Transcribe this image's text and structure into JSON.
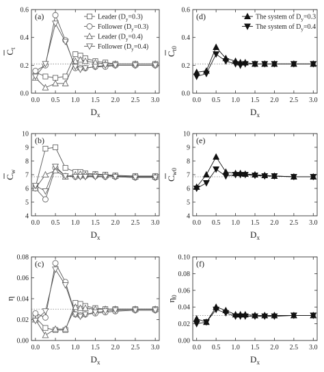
{
  "chart_data": [
    {
      "id": "a",
      "type": "line",
      "panel_label": "(a)",
      "xlabel": "D",
      "xlabel_sub": "x",
      "ylabel": "C",
      "ylabel_sub": "t",
      "ylabel_bar": true,
      "xlim": [
        -0.1,
        3.1
      ],
      "ylim": [
        0.0,
        0.6
      ],
      "xticks": [
        0.0,
        0.5,
        1.0,
        1.5,
        2.0,
        2.5,
        3.0
      ],
      "xtick_labels": [
        "0.0",
        "0.5",
        "1.0",
        "1.5",
        "2.0",
        "2.5",
        "3.0"
      ],
      "yticks": [
        0.0,
        0.2,
        0.4,
        0.6
      ],
      "ytick_labels": [
        "0.0",
        "0.2",
        "0.4",
        "0.6"
      ],
      "reference_line": 0.21,
      "legend": {
        "position": "top-right",
        "entries": [
          {
            "marker": "square-open",
            "text": "Leader (D",
            "sub": "y",
            "suffix": "=0.3)"
          },
          {
            "marker": "circle-open",
            "text": "Follower (D",
            "sub": "y",
            "suffix": "=0.3)"
          },
          {
            "marker": "triangle-up-open",
            "text": "Leader (D",
            "sub": "y",
            "suffix": "=0.4)"
          },
          {
            "marker": "triangle-down-open",
            "text": "Follower (D",
            "sub": "y",
            "suffix": "=0.4)"
          }
        ]
      },
      "series": [
        {
          "marker": "square-open",
          "x": [
            0.0,
            0.25,
            0.5,
            0.75,
            1.0,
            1.125,
            1.25,
            1.5,
            1.75,
            2.0,
            2.5,
            3.0
          ],
          "y": [
            0.15,
            0.12,
            0.11,
            0.12,
            0.28,
            0.27,
            0.25,
            0.23,
            0.22,
            0.21,
            0.21,
            0.21
          ]
        },
        {
          "marker": "circle-open",
          "x": [
            0.0,
            0.25,
            0.5,
            0.75,
            1.0,
            1.125,
            1.25,
            1.5,
            1.75,
            2.0,
            2.5,
            3.0
          ],
          "y": [
            0.16,
            0.2,
            0.56,
            0.38,
            0.18,
            0.18,
            0.18,
            0.19,
            0.19,
            0.2,
            0.2,
            0.2
          ]
        },
        {
          "marker": "triangle-up-open",
          "x": [
            0.0,
            0.25,
            0.5,
            0.75,
            1.0,
            1.125,
            1.25,
            1.5,
            1.75,
            2.0,
            2.5,
            3.0
          ],
          "y": [
            0.11,
            0.04,
            0.07,
            0.07,
            0.23,
            0.24,
            0.23,
            0.22,
            0.21,
            0.21,
            0.21,
            0.21
          ]
        },
        {
          "marker": "triangle-down-open",
          "x": [
            0.0,
            0.25,
            0.5,
            0.75,
            1.0,
            1.125,
            1.25,
            1.5,
            1.75,
            2.0,
            2.5,
            3.0
          ],
          "y": [
            0.12,
            0.21,
            0.5,
            0.37,
            0.19,
            0.17,
            0.18,
            0.19,
            0.2,
            0.2,
            0.2,
            0.2
          ]
        }
      ]
    },
    {
      "id": "d",
      "type": "line",
      "panel_label": "(d)",
      "xlabel": "D",
      "xlabel_sub": "x",
      "ylabel": "C",
      "ylabel_sub": "t0",
      "ylabel_bar": true,
      "xlim": [
        -0.1,
        3.1
      ],
      "ylim": [
        0.0,
        0.6
      ],
      "xticks": [
        0.0,
        0.5,
        1.0,
        1.5,
        2.0,
        2.5,
        3.0
      ],
      "xtick_labels": [
        "0.0",
        "0.5",
        "1.0",
        "1.5",
        "2.0",
        "2.5",
        "3.0"
      ],
      "yticks": [
        0.0,
        0.2,
        0.4,
        0.6
      ],
      "ytick_labels": [
        "0.0",
        "0.2",
        "0.4",
        "0.6"
      ],
      "reference_line": 0.21,
      "legend": {
        "position": "top-right",
        "entries": [
          {
            "marker": "triangle-up-filled",
            "text": "The system of  D",
            "sub": "y",
            "suffix": "=0.3"
          },
          {
            "marker": "triangle-down-filled",
            "text": "The system of  D",
            "sub": "y",
            "suffix": "=0.4"
          }
        ]
      },
      "series": [
        {
          "marker": "triangle-up-filled",
          "x": [
            0.0,
            0.25,
            0.5,
            0.75,
            1.0,
            1.125,
            1.25,
            1.5,
            1.75,
            2.0,
            2.5,
            3.0
          ],
          "y": [
            0.15,
            0.16,
            0.33,
            0.25,
            0.23,
            0.22,
            0.22,
            0.21,
            0.21,
            0.21,
            0.21,
            0.21
          ]
        },
        {
          "marker": "triangle-down-filled",
          "x": [
            0.0,
            0.25,
            0.5,
            0.75,
            1.0,
            1.125,
            1.25,
            1.5,
            1.75,
            2.0,
            2.5,
            3.0
          ],
          "y": [
            0.12,
            0.14,
            0.28,
            0.23,
            0.21,
            0.2,
            0.21,
            0.21,
            0.21,
            0.21,
            0.21,
            0.21
          ]
        }
      ]
    },
    {
      "id": "b",
      "type": "line",
      "panel_label": "(b)",
      "xlabel": "D",
      "xlabel_sub": "x",
      "ylabel": "C",
      "ylabel_sub": "w",
      "ylabel_bar": true,
      "xlim": [
        -0.1,
        3.1
      ],
      "ylim": [
        4,
        10
      ],
      "xticks": [
        0.0,
        0.5,
        1.0,
        1.5,
        2.0,
        2.5,
        3.0
      ],
      "xtick_labels": [
        "0.0",
        "0.5",
        "1.0",
        "1.5",
        "2.0",
        "2.5",
        "3.0"
      ],
      "yticks": [
        4,
        5,
        6,
        7,
        8,
        9,
        10
      ],
      "ytick_labels": [
        "4",
        "5",
        "6",
        "7",
        "8",
        "9",
        "10"
      ],
      "reference_line": 6.85,
      "series": [
        {
          "marker": "square-open",
          "x": [
            0.0,
            0.25,
            0.5,
            0.75,
            1.0,
            1.125,
            1.25,
            1.5,
            1.75,
            2.0,
            2.5,
            3.0
          ],
          "y": [
            6.1,
            8.9,
            9.0,
            7.5,
            7.2,
            7.2,
            7.1,
            7.05,
            7.0,
            6.95,
            6.9,
            6.9
          ]
        },
        {
          "marker": "circle-open",
          "x": [
            0.0,
            0.25,
            0.5,
            0.75,
            1.0,
            1.125,
            1.25,
            1.5,
            1.75,
            2.0,
            2.5,
            3.0
          ],
          "y": [
            6.0,
            5.2,
            7.5,
            6.9,
            6.85,
            6.9,
            6.9,
            6.9,
            6.85,
            6.85,
            6.8,
            6.8
          ]
        },
        {
          "marker": "triangle-up-open",
          "x": [
            0.0,
            0.25,
            0.5,
            0.75,
            1.0,
            1.125,
            1.25,
            1.5,
            1.75,
            2.0,
            2.5,
            3.0
          ],
          "y": [
            6.0,
            7.0,
            7.3,
            6.85,
            7.0,
            7.05,
            7.0,
            7.0,
            6.95,
            6.9,
            6.85,
            6.85
          ]
        },
        {
          "marker": "triangle-down-open",
          "x": [
            0.0,
            0.25,
            0.5,
            0.75,
            1.0,
            1.125,
            1.25,
            1.5,
            1.75,
            2.0,
            2.5,
            3.0
          ],
          "y": [
            6.2,
            5.8,
            7.6,
            6.9,
            6.85,
            6.85,
            6.85,
            6.85,
            6.85,
            6.85,
            6.8,
            6.8
          ]
        }
      ]
    },
    {
      "id": "e",
      "type": "line",
      "panel_label": "(e)",
      "xlabel": "D",
      "xlabel_sub": "x",
      "ylabel": "C",
      "ylabel_sub": "w0",
      "ylabel_bar": true,
      "xlim": [
        -0.1,
        3.1
      ],
      "ylim": [
        4,
        10
      ],
      "xticks": [
        0.0,
        0.5,
        1.0,
        1.5,
        2.0,
        2.5,
        3.0
      ],
      "xtick_labels": [
        "0.0",
        "0.5",
        "1.0",
        "1.5",
        "2.0",
        "2.5",
        "3.0"
      ],
      "yticks": [
        4,
        5,
        6,
        7,
        8,
        9,
        10
      ],
      "ytick_labels": [
        "4",
        "5",
        "6",
        "7",
        "8",
        "9",
        "10"
      ],
      "reference_line": 6.85,
      "series": [
        {
          "marker": "triangle-up-filled",
          "x": [
            0.0,
            0.25,
            0.5,
            0.75,
            1.0,
            1.125,
            1.25,
            1.5,
            1.75,
            2.0,
            2.5,
            3.0
          ],
          "y": [
            6.1,
            7.0,
            8.3,
            7.2,
            7.1,
            7.1,
            7.05,
            7.0,
            6.95,
            6.9,
            6.85,
            6.85
          ]
        },
        {
          "marker": "triangle-down-filled",
          "x": [
            0.0,
            0.25,
            0.5,
            0.75,
            1.0,
            1.125,
            1.25,
            1.5,
            1.75,
            2.0,
            2.5,
            3.0
          ],
          "y": [
            6.0,
            6.4,
            7.4,
            6.9,
            7.0,
            7.0,
            7.0,
            6.95,
            6.9,
            6.9,
            6.85,
            6.85
          ]
        }
      ]
    },
    {
      "id": "c",
      "type": "line",
      "panel_label": "(c)",
      "xlabel": "D",
      "xlabel_sub": "x",
      "ylabel": "η",
      "ylabel_sub": "",
      "ylabel_bar": false,
      "xlim": [
        -0.1,
        3.1
      ],
      "ylim": [
        0.0,
        0.08
      ],
      "xticks": [
        0.0,
        0.5,
        1.0,
        1.5,
        2.0,
        2.5,
        3.0
      ],
      "xtick_labels": [
        "0.0",
        "0.5",
        "1.0",
        "1.5",
        "2.0",
        "2.5",
        "3.0"
      ],
      "yticks": [
        0.0,
        0.02,
        0.04,
        0.06,
        0.08
      ],
      "ytick_labels": [
        "0.00",
        "0.02",
        "0.04",
        "0.06",
        "0.08"
      ],
      "reference_line": 0.03,
      "series": [
        {
          "marker": "square-open",
          "x": [
            0.0,
            0.25,
            0.5,
            0.75,
            1.0,
            1.125,
            1.25,
            1.5,
            1.75,
            2.0,
            2.5,
            3.0
          ],
          "y": [
            0.022,
            0.012,
            0.01,
            0.01,
            0.036,
            0.035,
            0.033,
            0.031,
            0.03,
            0.03,
            0.03,
            0.03
          ]
        },
        {
          "marker": "circle-open",
          "x": [
            0.0,
            0.25,
            0.5,
            0.75,
            1.0,
            1.125,
            1.25,
            1.5,
            1.75,
            2.0,
            2.5,
            3.0
          ],
          "y": [
            0.026,
            0.022,
            0.074,
            0.056,
            0.025,
            0.024,
            0.025,
            0.026,
            0.027,
            0.028,
            0.029,
            0.029
          ]
        },
        {
          "marker": "triangle-up-open",
          "x": [
            0.0,
            0.25,
            0.5,
            0.75,
            1.0,
            1.125,
            1.25,
            1.5,
            1.75,
            2.0,
            2.5,
            3.0
          ],
          "y": [
            0.02,
            0.005,
            0.011,
            0.011,
            0.032,
            0.031,
            0.031,
            0.03,
            0.03,
            0.03,
            0.03,
            0.03
          ]
        },
        {
          "marker": "triangle-down-open",
          "x": [
            0.0,
            0.25,
            0.5,
            0.75,
            1.0,
            1.125,
            1.25,
            1.5,
            1.75,
            2.0,
            2.5,
            3.0
          ],
          "y": [
            0.019,
            0.028,
            0.068,
            0.053,
            0.025,
            0.023,
            0.025,
            0.027,
            0.028,
            0.029,
            0.029,
            0.029
          ]
        }
      ]
    },
    {
      "id": "f",
      "type": "line",
      "panel_label": "(f)",
      "xlabel": "D",
      "xlabel_sub": "x",
      "ylabel": "η",
      "ylabel_sub": "0",
      "ylabel_bar": false,
      "xlim": [
        -0.1,
        3.1
      ],
      "ylim": [
        0.0,
        0.1
      ],
      "xticks": [
        0.0,
        0.5,
        1.0,
        1.5,
        2.0,
        2.5,
        3.0
      ],
      "xtick_labels": [
        "0.0",
        "0.5",
        "1.0",
        "1.5",
        "2.0",
        "2.5",
        "3.0"
      ],
      "yticks": [
        0.0,
        0.02,
        0.04,
        0.06,
        0.08,
        0.1
      ],
      "ytick_labels": [
        "0.00",
        "0.02",
        "0.04",
        "0.06",
        "0.08",
        "0.10"
      ],
      "reference_line": 0.03,
      "series": [
        {
          "marker": "triangle-up-filled",
          "x": [
            0.0,
            0.25,
            0.5,
            0.75,
            1.0,
            1.125,
            1.25,
            1.5,
            1.75,
            2.0,
            2.5,
            3.0
          ],
          "y": [
            0.026,
            0.022,
            0.04,
            0.036,
            0.031,
            0.031,
            0.031,
            0.03,
            0.03,
            0.03,
            0.03,
            0.03
          ]
        },
        {
          "marker": "triangle-down-filled",
          "x": [
            0.0,
            0.25,
            0.5,
            0.75,
            1.0,
            1.125,
            1.25,
            1.5,
            1.75,
            2.0,
            2.5,
            3.0
          ],
          "y": [
            0.02,
            0.022,
            0.037,
            0.033,
            0.029,
            0.029,
            0.029,
            0.029,
            0.029,
            0.029,
            0.03,
            0.03
          ]
        }
      ]
    }
  ]
}
